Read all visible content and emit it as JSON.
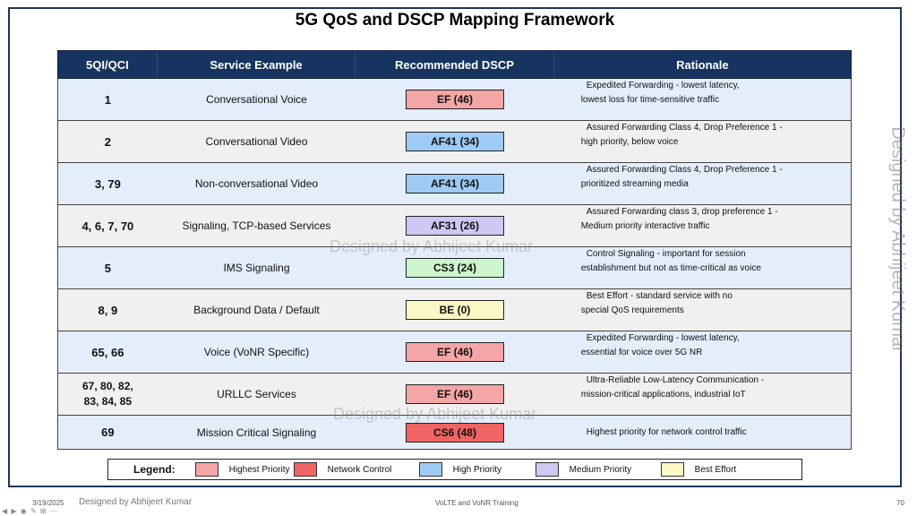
{
  "title": "5G QoS and DSCP Mapping Framework",
  "table": {
    "headers": [
      "5QI/QCI",
      "Service Example",
      "Recommended DSCP",
      "Rationale"
    ],
    "rows": [
      {
        "qci": "1",
        "service": "Conversational Voice",
        "dscp": "EF (46)",
        "dscp_color": "#f4a6a6",
        "rationale_1": "Expedited Forwarding - lowest latency,",
        "rationale_2": "lowest loss for time-sensitive traffic",
        "bg": "blue"
      },
      {
        "qci": "2",
        "service": "Conversational Video",
        "dscp": "AF41 (34)",
        "dscp_color": "#9ecbf5",
        "rationale_1": "Assured Forwarding Class 4, Drop Preference 1 -",
        "rationale_2": "high priority, below voice",
        "bg": "gray"
      },
      {
        "qci": "3, 79",
        "service": "Non-conversational Video",
        "dscp": "AF41 (34)",
        "dscp_color": "#9ecbf5",
        "rationale_1": "Assured Forwarding Class 4, Drop Preference 1 -",
        "rationale_2": "prioritized streaming media",
        "bg": "blue"
      },
      {
        "qci": "4, 6, 7, 70",
        "service": "Signaling, TCP-based Services",
        "dscp": "AF31 (26)",
        "dscp_color": "#cdc8f4",
        "rationale_1": "Assured Forwarding class 3, drop preference 1 -",
        "rationale_2": "Medium priority interactive traffic",
        "bg": "gray"
      },
      {
        "qci": "5",
        "service": "IMS Signaling",
        "dscp": "CS3 (24)",
        "dscp_color": "#cdf5cd",
        "rationale_1": "Control Signaling - important for session",
        "rationale_2": "establishment but not as time-critical as voice",
        "bg": "blue"
      },
      {
        "qci": "8, 9",
        "service": "Background Data / Default",
        "dscp": "BE (0)",
        "dscp_color": "#fbf8c6",
        "rationale_1": "Best Effort - standard service with no",
        "rationale_2": "special QoS requirements",
        "bg": "gray"
      },
      {
        "qci": "65, 66",
        "service": "Voice (VoNR Specific)",
        "dscp": "EF (46)",
        "dscp_color": "#f4a6a6",
        "rationale_1": "Expedited Forwarding - lowest latency,",
        "rationale_2": "essential for voice over 5G NR",
        "bg": "blue"
      },
      {
        "qci": "67, 80, 82,",
        "qci_2": "83, 84, 85",
        "service": "URLLC Services",
        "dscp": "EF (46)",
        "dscp_color": "#f4a6a6",
        "rationale_1": "Ultra-Reliable Low-Latency Communication -",
        "rationale_2": "mission-critical applications, industrial IoT",
        "bg": "gray"
      },
      {
        "qci": "69",
        "service": "Mission Critical Signaling",
        "dscp": "CS6 (48)",
        "dscp_color": "#f06464",
        "rationale_1": "Highest priority for network control traffic",
        "rationale_2": "",
        "bg": "blue"
      }
    ]
  },
  "legend": {
    "title": "Legend:",
    "items": [
      {
        "label": "Highest Priority",
        "color": "#f4a6a6"
      },
      {
        "label": "Network Control",
        "color": "#f06464"
      },
      {
        "label": "High Priority",
        "color": "#9ecbf5"
      },
      {
        "label": "Medium Priority",
        "color": "#cdc8f4"
      },
      {
        "label": "Best Effort",
        "color": "#fbf8c6"
      }
    ]
  },
  "watermark": "Designed by Abhijeet Kumar",
  "footer": {
    "date": "3/19/2025",
    "author": "Designed by Abhijeet Kumar",
    "center": "VoLTE and VoNR Training",
    "page": "70"
  }
}
